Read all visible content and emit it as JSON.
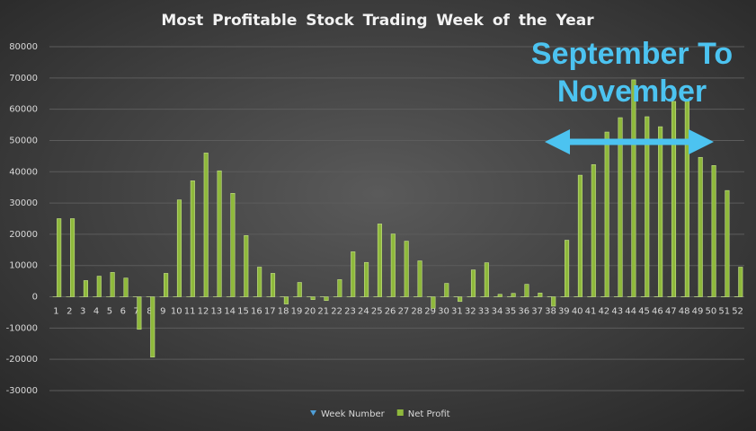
{
  "chart_data": {
    "type": "bar",
    "title": "Most Profitable Stock Trading Week of the Year",
    "categories": [
      "1",
      "2",
      "3",
      "4",
      "5",
      "6",
      "7",
      "8",
      "9",
      "10",
      "11",
      "12",
      "13",
      "14",
      "15",
      "16",
      "17",
      "18",
      "19",
      "20",
      "21",
      "22",
      "23",
      "24",
      "25",
      "26",
      "27",
      "28",
      "29",
      "30",
      "31",
      "32",
      "33",
      "34",
      "35",
      "36",
      "37",
      "38",
      "39",
      "40",
      "41",
      "42",
      "43",
      "44",
      "45",
      "46",
      "47",
      "48",
      "49",
      "50",
      "51",
      "52"
    ],
    "series": [
      {
        "name": "Week Number",
        "color": "#4f9fd8",
        "values": [
          1,
          2,
          3,
          4,
          5,
          6,
          7,
          8,
          9,
          10,
          11,
          12,
          13,
          14,
          15,
          16,
          17,
          18,
          19,
          20,
          21,
          22,
          23,
          24,
          25,
          26,
          27,
          28,
          29,
          30,
          31,
          32,
          33,
          34,
          35,
          36,
          37,
          38,
          39,
          40,
          41,
          42,
          43,
          44,
          45,
          46,
          47,
          48,
          49,
          50,
          51,
          52
        ]
      },
      {
        "name": "Net Profit",
        "color": "#8fb93c",
        "values": [
          25000,
          25000,
          5200,
          6600,
          7800,
          6000,
          -10400,
          -19300,
          7500,
          31000,
          37100,
          46000,
          40300,
          33100,
          19600,
          9500,
          7500,
          -2300,
          4600,
          -900,
          -1200,
          5500,
          14400,
          11000,
          23300,
          20100,
          17800,
          11500,
          -3700,
          4300,
          -1500,
          8600,
          10900,
          800,
          1100,
          4000,
          1200,
          -3000,
          18100,
          38900,
          42300,
          52700,
          57300,
          69400,
          57600,
          54400,
          62500,
          63000,
          44600,
          42000,
          34000,
          9500
        ]
      }
    ],
    "ylim": [
      -30000,
      80000
    ],
    "yticks": [
      -30000,
      -20000,
      -10000,
      0,
      10000,
      20000,
      30000,
      40000,
      50000,
      60000,
      70000,
      80000
    ],
    "grid": true,
    "legend": "bottom",
    "annotations": [
      "September To",
      "November"
    ]
  }
}
